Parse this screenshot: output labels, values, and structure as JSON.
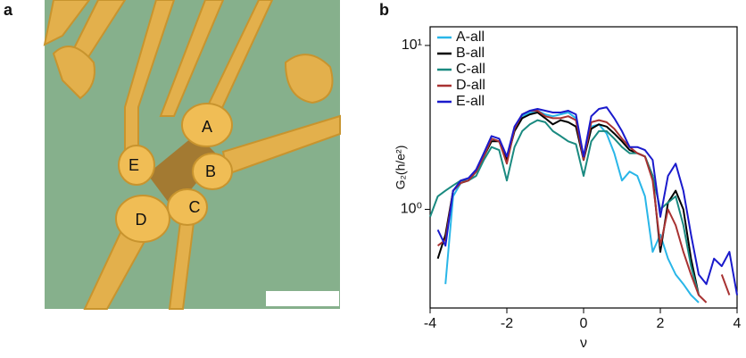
{
  "image": {
    "panel_label": "a",
    "contacts": [
      "A",
      "B",
      "C",
      "D",
      "E"
    ]
  },
  "chart_data": {
    "type": "line",
    "panel_label": "b",
    "xlabel": "ν",
    "ylabel": "G₂(h/e²)",
    "x": [
      -4,
      -3.8,
      -3.6,
      -3.4,
      -3.2,
      -3.0,
      -2.8,
      -2.6,
      -2.4,
      -2.2,
      -2.0,
      -1.8,
      -1.6,
      -1.4,
      -1.2,
      -1.0,
      -0.8,
      -0.6,
      -0.4,
      -0.2,
      0,
      0.2,
      0.4,
      0.6,
      0.8,
      1.0,
      1.2,
      1.4,
      1.6,
      1.8,
      2.0,
      2.2,
      2.4,
      2.6,
      2.8,
      3.0,
      3.2,
      3.4,
      3.6,
      3.8,
      4.0
    ],
    "xlim": [
      -4,
      4
    ],
    "xticks": [
      -4,
      -2,
      0,
      2,
      4
    ],
    "ylim": [
      0.25,
      13
    ],
    "log_y": true,
    "yticks": [
      {
        "value": 1,
        "label": "10⁰"
      },
      {
        "value": 10,
        "label": "10¹"
      }
    ],
    "legend": "upper left",
    "series": [
      {
        "name": "A-all",
        "color": "#29b6e8",
        "values": [
          null,
          null,
          0.35,
          1.2,
          1.45,
          1.5,
          1.7,
          2.2,
          2.7,
          2.6,
          2.1,
          3.1,
          3.7,
          3.9,
          4.0,
          3.8,
          3.7,
          3.8,
          3.9,
          3.6,
          2.0,
          3.2,
          3.3,
          2.9,
          2.2,
          1.5,
          1.7,
          1.6,
          1.2,
          0.55,
          0.7,
          0.5,
          0.4,
          0.35,
          0.3,
          0.27,
          null,
          null,
          null,
          null,
          null
        ]
      },
      {
        "name": "B-all",
        "color": "#000000",
        "values": [
          null,
          0.5,
          0.7,
          1.3,
          1.45,
          1.5,
          1.7,
          2.1,
          2.6,
          2.6,
          2.0,
          3.0,
          3.6,
          3.8,
          3.9,
          3.6,
          3.3,
          3.5,
          3.4,
          3.2,
          2.0,
          3.1,
          3.3,
          3.2,
          2.9,
          2.6,
          2.3,
          2.2,
          2.1,
          1.6,
          0.55,
          1.1,
          1.3,
          1.0,
          0.5,
          0.3,
          null,
          null,
          null,
          null,
          null
        ]
      },
      {
        "name": "C-all",
        "color": "#1a8a80",
        "values": [
          0.9,
          1.2,
          1.3,
          1.4,
          1.5,
          1.5,
          1.6,
          2.0,
          2.4,
          2.3,
          1.5,
          2.4,
          3.0,
          3.3,
          3.5,
          3.4,
          3.0,
          2.8,
          2.6,
          2.5,
          1.6,
          2.6,
          3.0,
          3.0,
          2.7,
          2.4,
          2.2,
          2.2,
          2.1,
          1.6,
          1.0,
          1.1,
          1.2,
          0.8,
          0.45,
          0.3,
          null,
          null,
          null,
          null,
          null
        ]
      },
      {
        "name": "D-all",
        "color": "#a83232",
        "values": [
          null,
          0.6,
          0.65,
          1.3,
          1.45,
          1.5,
          1.7,
          2.1,
          2.7,
          2.6,
          1.9,
          3.1,
          3.8,
          4.0,
          4.0,
          3.7,
          3.6,
          3.6,
          3.7,
          3.5,
          2.0,
          3.4,
          3.5,
          3.4,
          3.1,
          2.7,
          2.4,
          2.2,
          2.1,
          1.5,
          0.6,
          1.0,
          0.8,
          0.55,
          0.4,
          0.3,
          0.27,
          null,
          0.4,
          0.3,
          null
        ]
      },
      {
        "name": "E-all",
        "color": "#1a1acc",
        "values": [
          null,
          0.75,
          0.6,
          1.3,
          1.5,
          1.55,
          1.75,
          2.2,
          2.8,
          2.7,
          2.1,
          3.2,
          3.8,
          4.0,
          4.1,
          4.0,
          3.9,
          3.9,
          4.0,
          3.8,
          2.1,
          3.7,
          4.1,
          4.2,
          3.6,
          3.0,
          2.4,
          2.4,
          2.3,
          2.0,
          0.9,
          1.6,
          1.9,
          1.3,
          0.7,
          0.4,
          0.35,
          0.5,
          0.45,
          0.55,
          0.3
        ]
      }
    ]
  }
}
